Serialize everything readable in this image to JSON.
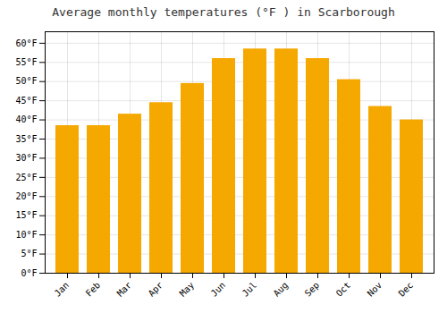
{
  "chart_data": {
    "type": "bar",
    "title": "Average monthly temperatures (°F ) in Scarborough",
    "categories": [
      "Jan",
      "Feb",
      "Mar",
      "Apr",
      "May",
      "Jun",
      "Jul",
      "Aug",
      "Sep",
      "Oct",
      "Nov",
      "Dec"
    ],
    "values": [
      38.5,
      38.5,
      41.5,
      44.5,
      49.5,
      56.0,
      58.5,
      58.5,
      56.0,
      50.5,
      43.5,
      40.0
    ],
    "color": "#F5A800",
    "ylim": [
      0,
      63
    ],
    "yticks": [
      {
        "value": 0,
        "label": "0°F"
      },
      {
        "value": 5,
        "label": "5°F"
      },
      {
        "value": 10,
        "label": "10°F"
      },
      {
        "value": 15,
        "label": "15°F"
      },
      {
        "value": 20,
        "label": "20°F"
      },
      {
        "value": 25,
        "label": "25°F"
      },
      {
        "value": 30,
        "label": "30°F"
      },
      {
        "value": 35,
        "label": "35°F"
      },
      {
        "value": 40,
        "label": "40°F"
      },
      {
        "value": 45,
        "label": "45°F"
      },
      {
        "value": 50,
        "label": "50°F"
      },
      {
        "value": 55,
        "label": "55°F"
      },
      {
        "value": 60,
        "label": "60°F"
      }
    ],
    "grid": true
  }
}
